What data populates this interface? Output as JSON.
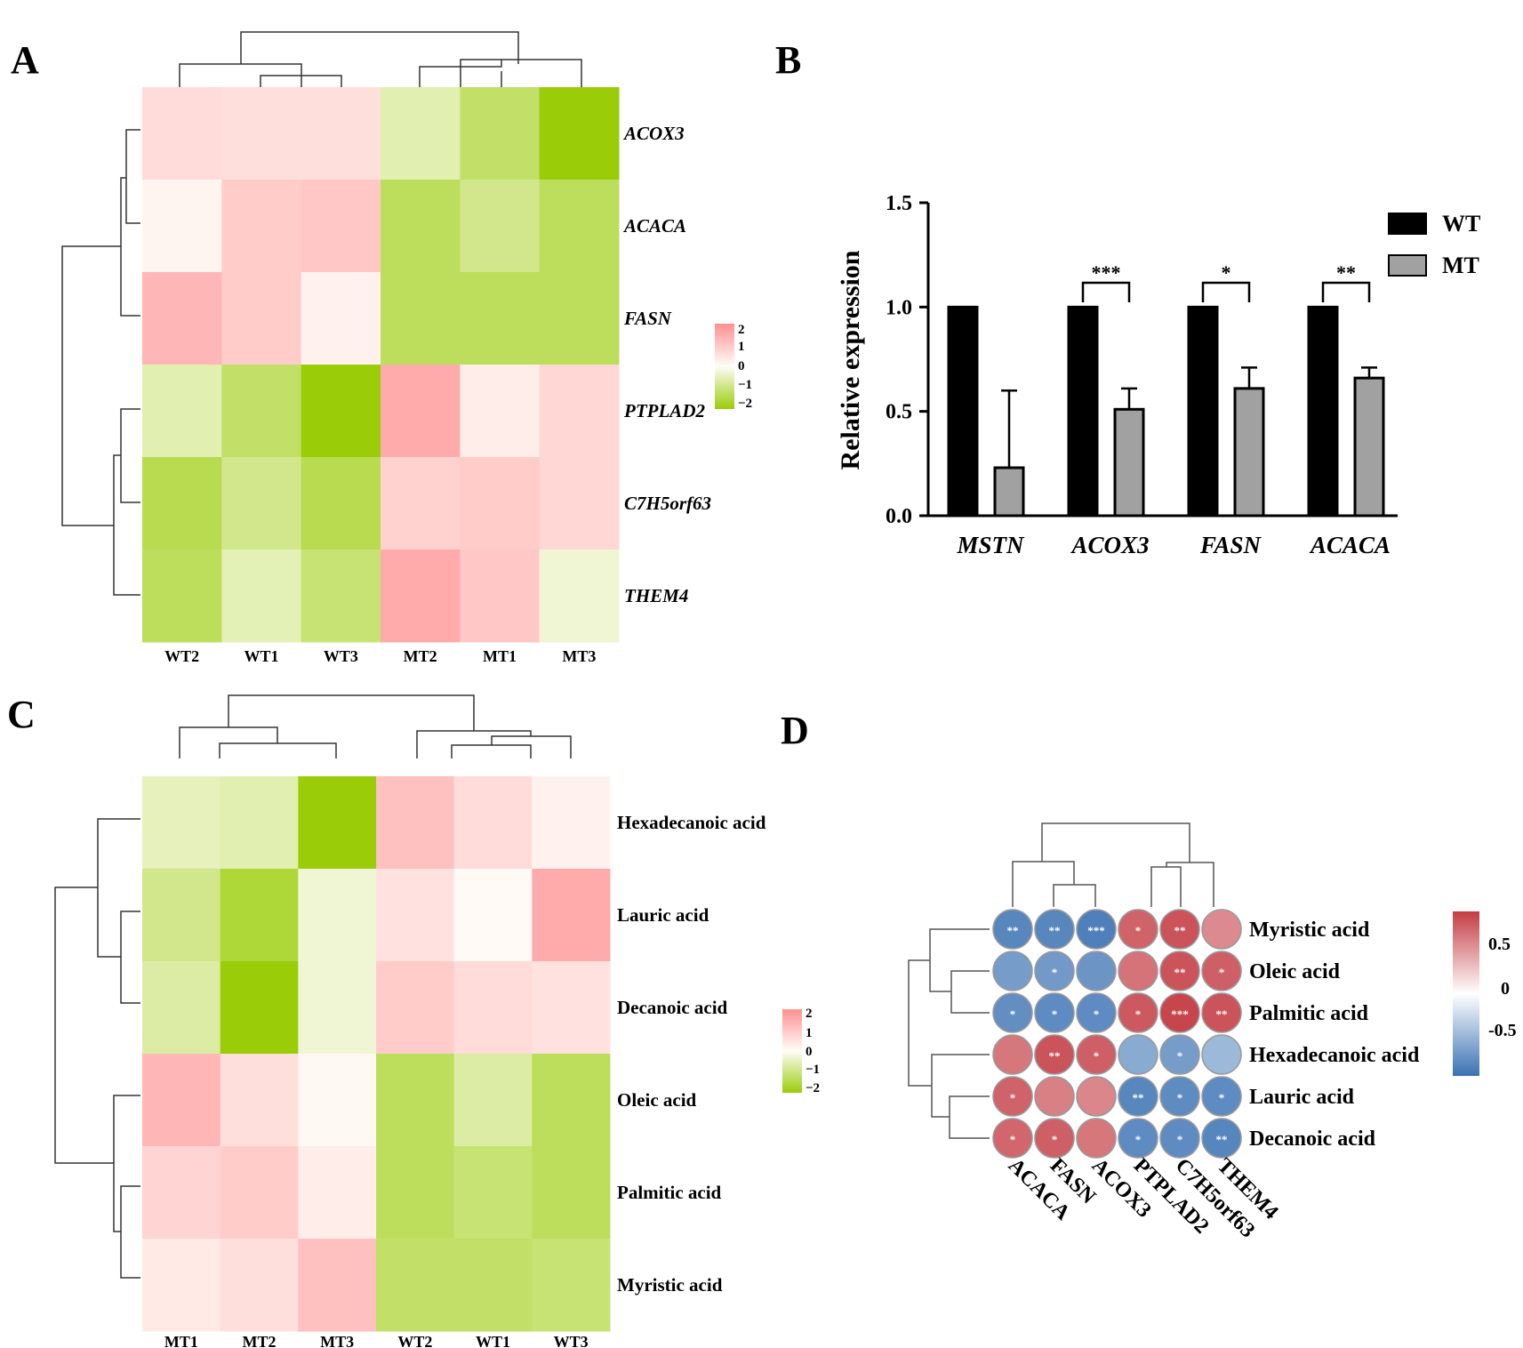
{
  "panels": {
    "a": "A",
    "b": "B",
    "c": "C",
    "d": "D"
  },
  "colors": {
    "heat_low": "#9acd08",
    "heat_mid": "#fffdf8",
    "heat_high": "#ff9092",
    "corr_low": "#3b72b3",
    "corr_mid": "#ffffff",
    "corr_high": "#c43c44",
    "bar_wt": "#000000",
    "bar_mt": "#a1a1a1"
  },
  "chart_data": [
    {
      "type": "heatmap",
      "panel": "A",
      "columns": [
        "WT2",
        "WT1",
        "WT3",
        "MT2",
        "MT1",
        "MT3"
      ],
      "rows": [
        "ACOX3",
        "ACACA",
        "FASN",
        "PTPLAD2",
        "C7H5orf63",
        "THEM4"
      ],
      "values": [
        [
          0.6,
          0.55,
          0.55,
          -0.6,
          -1.2,
          -2.0
        ],
        [
          0.15,
          0.9,
          1.0,
          -1.3,
          -0.9,
          -1.3
        ],
        [
          1.3,
          0.9,
          0.2,
          -1.3,
          -1.3,
          -1.3
        ],
        [
          -0.6,
          -1.2,
          -2.0,
          1.5,
          0.3,
          0.7
        ],
        [
          -1.4,
          -0.9,
          -1.4,
          0.8,
          0.9,
          0.7
        ],
        [
          -1.3,
          -0.55,
          -1.1,
          1.5,
          1.0,
          -0.3
        ]
      ],
      "scale_range": [
        -2,
        2
      ],
      "legend_ticks": [
        "2",
        "1",
        "0",
        "−1",
        "−2"
      ]
    },
    {
      "type": "bar",
      "panel": "B",
      "categories": [
        "MSTN",
        "ACOX3",
        "FASN",
        "ACACA"
      ],
      "series": [
        {
          "name": "WT",
          "values": [
            1.0,
            1.0,
            1.0,
            1.0
          ],
          "errors": [
            0,
            0,
            0,
            0
          ]
        },
        {
          "name": "MT",
          "values": [
            0.23,
            0.51,
            0.61,
            0.66
          ],
          "errors": [
            0.37,
            0.1,
            0.1,
            0.05
          ]
        }
      ],
      "significance": [
        {
          "category": "ACOX3",
          "label": "***"
        },
        {
          "category": "FASN",
          "label": "*"
        },
        {
          "category": "ACACA",
          "label": "**"
        }
      ],
      "ylabel": "Relative expression",
      "ylim": [
        0,
        1.5
      ],
      "yticks": [
        "0.0",
        "0.5",
        "1.0",
        "1.5"
      ],
      "legend_position": "top-right"
    },
    {
      "type": "heatmap",
      "panel": "C",
      "columns": [
        "MT1",
        "MT2",
        "MT3",
        "WT2",
        "WT1",
        "WT3"
      ],
      "rows": [
        "Hexadecanoic acid",
        "Lauric acid",
        "Decanoic acid",
        "Oleic acid",
        "Palmitic acid",
        "Myristic acid"
      ],
      "values": [
        [
          -0.5,
          -0.6,
          -2.0,
          1.1,
          0.6,
          0.2
        ],
        [
          -0.9,
          -1.6,
          -0.3,
          0.5,
          0.05,
          1.5
        ],
        [
          -0.7,
          -2.0,
          -0.3,
          0.9,
          0.6,
          0.5
        ],
        [
          1.3,
          0.55,
          0.1,
          -1.3,
          -0.7,
          -1.3
        ],
        [
          0.75,
          0.9,
          0.3,
          -1.3,
          -1.1,
          -1.3
        ],
        [
          0.35,
          0.55,
          1.1,
          -1.2,
          -1.2,
          -1.1
        ]
      ],
      "scale_range": [
        -2,
        2
      ],
      "legend_ticks": [
        "2",
        "1",
        "0",
        "−1",
        "−2"
      ]
    },
    {
      "type": "heatmap",
      "panel": "D",
      "subtype": "correlation",
      "columns": [
        "ACACA",
        "FASN",
        "ACOX3",
        "PTPLAD2",
        "C7H5orf63",
        "THEM4"
      ],
      "rows": [
        "Myristic acid",
        "Oleic acid",
        "Palmitic acid",
        "Hexadecanoic acid",
        "Lauric acid",
        "Decanoic acid"
      ],
      "values": [
        [
          -0.85,
          -0.85,
          -0.9,
          0.8,
          0.88,
          0.6
        ],
        [
          -0.7,
          -0.72,
          -0.75,
          0.72,
          0.88,
          0.82
        ],
        [
          -0.8,
          -0.82,
          -0.82,
          0.85,
          0.95,
          0.88
        ],
        [
          0.7,
          0.88,
          0.82,
          -0.6,
          -0.7,
          -0.5
        ],
        [
          0.8,
          0.65,
          0.62,
          -0.85,
          -0.82,
          -0.82
        ],
        [
          0.78,
          0.82,
          0.7,
          -0.82,
          -0.82,
          -0.86
        ]
      ],
      "significance": [
        [
          "**",
          "**",
          "***",
          "*",
          "**",
          ""
        ],
        [
          "",
          "*",
          "",
          "",
          "**",
          "*"
        ],
        [
          "*",
          "*",
          "*",
          "*",
          "***",
          "**"
        ],
        [
          "",
          "**",
          "*",
          "",
          "*",
          ""
        ],
        [
          "*",
          "",
          "",
          "**",
          "*",
          "*"
        ],
        [
          "*",
          "*",
          "",
          "*",
          "*",
          "**"
        ]
      ],
      "scale_range": [
        -1,
        1
      ],
      "legend_ticks": [
        "0.5",
        "0",
        "-0.5"
      ]
    }
  ]
}
